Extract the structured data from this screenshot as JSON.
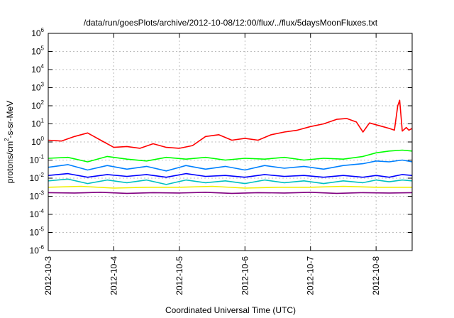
{
  "chart_data": {
    "type": "line",
    "title": "/data/run/goesPlots/archive/2012-10-08/12:00/flux/../flux/5daysMoonFluxes.txt",
    "xlabel": "Coordinated Universal Time (UTC)",
    "ylabel_parts": {
      "pre": "protons/cm",
      "sup": "2",
      "post": "-s-sr-MeV"
    },
    "yscale": "log",
    "ylim_exp": [
      -6,
      6
    ],
    "y_ticks": [
      {
        "base": "10",
        "exp": "6"
      },
      {
        "base": "10",
        "exp": "5"
      },
      {
        "base": "10",
        "exp": "4"
      },
      {
        "base": "10",
        "exp": "3"
      },
      {
        "base": "10",
        "exp": "2"
      },
      {
        "base": "10",
        "exp": "1"
      },
      {
        "base": "10",
        "exp": "0"
      },
      {
        "base": "10",
        "exp": "-1"
      },
      {
        "base": "10",
        "exp": "-2"
      },
      {
        "base": "10",
        "exp": "-3"
      },
      {
        "base": "10",
        "exp": "-4"
      },
      {
        "base": "10",
        "exp": "-5"
      },
      {
        "base": "10",
        "exp": "-6"
      }
    ],
    "x_ticks": [
      "2012-10-3",
      "2012-10-4",
      "2012-10-5",
      "2012-10-6",
      "2012-10-7",
      "2012-10-8"
    ],
    "xlim_days": [
      0,
      5.55
    ],
    "grid": true,
    "series": [
      {
        "color": "#ff0000",
        "points": [
          [
            0,
            0.1
          ],
          [
            0.2,
            0.05
          ],
          [
            0.4,
            0.3
          ],
          [
            0.6,
            0.5
          ],
          [
            0.8,
            0.1
          ],
          [
            1.0,
            -0.3
          ],
          [
            1.2,
            -0.25
          ],
          [
            1.4,
            -0.35
          ],
          [
            1.6,
            -0.1
          ],
          [
            1.8,
            -0.3
          ],
          [
            2.0,
            -0.35
          ],
          [
            2.2,
            -0.2
          ],
          [
            2.4,
            0.3
          ],
          [
            2.6,
            0.4
          ],
          [
            2.8,
            0.1
          ],
          [
            3.0,
            0.2
          ],
          [
            3.2,
            0.1
          ],
          [
            3.4,
            0.4
          ],
          [
            3.6,
            0.55
          ],
          [
            3.8,
            0.65
          ],
          [
            4.0,
            0.85
          ],
          [
            4.2,
            1.0
          ],
          [
            4.4,
            1.25
          ],
          [
            4.55,
            1.3
          ],
          [
            4.7,
            1.1
          ],
          [
            4.8,
            0.55
          ],
          [
            4.9,
            1.05
          ],
          [
            5.0,
            0.95
          ],
          [
            5.1,
            0.85
          ],
          [
            5.2,
            0.75
          ],
          [
            5.28,
            0.65
          ],
          [
            5.33,
            2.0
          ],
          [
            5.36,
            2.3
          ],
          [
            5.4,
            0.6
          ],
          [
            5.46,
            0.8
          ],
          [
            5.5,
            0.65
          ],
          [
            5.55,
            0.75
          ]
        ]
      },
      {
        "color": "#00ff00",
        "points": [
          [
            0,
            -0.9
          ],
          [
            0.3,
            -0.85
          ],
          [
            0.6,
            -1.1
          ],
          [
            0.9,
            -0.8
          ],
          [
            1.2,
            -0.95
          ],
          [
            1.5,
            -1.05
          ],
          [
            1.8,
            -0.85
          ],
          [
            2.1,
            -0.95
          ],
          [
            2.4,
            -0.85
          ],
          [
            2.7,
            -1.0
          ],
          [
            3.0,
            -0.9
          ],
          [
            3.3,
            -0.95
          ],
          [
            3.6,
            -0.85
          ],
          [
            3.9,
            -1.0
          ],
          [
            4.2,
            -0.9
          ],
          [
            4.5,
            -0.95
          ],
          [
            4.8,
            -0.8
          ],
          [
            5.0,
            -0.6
          ],
          [
            5.2,
            -0.5
          ],
          [
            5.4,
            -0.45
          ],
          [
            5.55,
            -0.5
          ]
        ]
      },
      {
        "color": "#0080ff",
        "points": [
          [
            0,
            -1.4
          ],
          [
            0.3,
            -1.25
          ],
          [
            0.6,
            -1.55
          ],
          [
            0.9,
            -1.3
          ],
          [
            1.2,
            -1.5
          ],
          [
            1.5,
            -1.35
          ],
          [
            1.8,
            -1.6
          ],
          [
            2.1,
            -1.3
          ],
          [
            2.4,
            -1.5
          ],
          [
            2.7,
            -1.35
          ],
          [
            3.0,
            -1.55
          ],
          [
            3.3,
            -1.3
          ],
          [
            3.6,
            -1.45
          ],
          [
            3.9,
            -1.35
          ],
          [
            4.2,
            -1.5
          ],
          [
            4.5,
            -1.3
          ],
          [
            4.8,
            -1.2
          ],
          [
            5.0,
            -1.05
          ],
          [
            5.2,
            -1.1
          ],
          [
            5.4,
            -1.0
          ],
          [
            5.55,
            -1.1
          ]
        ]
      },
      {
        "color": "#0000ff",
        "points": [
          [
            0,
            -1.85
          ],
          [
            0.3,
            -1.75
          ],
          [
            0.6,
            -1.95
          ],
          [
            0.9,
            -1.8
          ],
          [
            1.2,
            -1.9
          ],
          [
            1.5,
            -1.8
          ],
          [
            1.8,
            -1.95
          ],
          [
            2.1,
            -1.75
          ],
          [
            2.4,
            -1.9
          ],
          [
            2.7,
            -1.85
          ],
          [
            3.0,
            -1.95
          ],
          [
            3.3,
            -1.8
          ],
          [
            3.6,
            -1.9
          ],
          [
            3.9,
            -1.85
          ],
          [
            4.2,
            -1.95
          ],
          [
            4.5,
            -1.85
          ],
          [
            4.8,
            -1.95
          ],
          [
            5.0,
            -1.85
          ],
          [
            5.2,
            -1.95
          ],
          [
            5.4,
            -1.8
          ],
          [
            5.55,
            -1.85
          ]
        ]
      },
      {
        "color": "#00c0c0",
        "points": [
          [
            0,
            -2.15
          ],
          [
            0.3,
            -2.05
          ],
          [
            0.6,
            -2.3
          ],
          [
            0.9,
            -2.1
          ],
          [
            1.2,
            -2.25
          ],
          [
            1.5,
            -2.1
          ],
          [
            1.8,
            -2.35
          ],
          [
            2.1,
            -2.1
          ],
          [
            2.4,
            -2.25
          ],
          [
            2.7,
            -2.15
          ],
          [
            3.0,
            -2.3
          ],
          [
            3.3,
            -2.1
          ],
          [
            3.6,
            -2.25
          ],
          [
            3.9,
            -2.15
          ],
          [
            4.2,
            -2.3
          ],
          [
            4.5,
            -2.15
          ],
          [
            4.8,
            -2.25
          ],
          [
            5.0,
            -2.1
          ],
          [
            5.2,
            -2.2
          ],
          [
            5.4,
            -2.1
          ],
          [
            5.55,
            -2.15
          ]
        ]
      },
      {
        "color": "#f0f000",
        "points": [
          [
            0,
            -2.5
          ],
          [
            0.5,
            -2.45
          ],
          [
            1.0,
            -2.55
          ],
          [
            1.5,
            -2.5
          ],
          [
            2.0,
            -2.5
          ],
          [
            2.5,
            -2.45
          ],
          [
            3.0,
            -2.55
          ],
          [
            3.5,
            -2.5
          ],
          [
            4.0,
            -2.5
          ],
          [
            4.5,
            -2.45
          ],
          [
            5.0,
            -2.5
          ],
          [
            5.55,
            -2.5
          ]
        ]
      },
      {
        "color": "#800080",
        "points": [
          [
            0,
            -2.8
          ],
          [
            0.4,
            -2.82
          ],
          [
            0.8,
            -2.78
          ],
          [
            1.2,
            -2.84
          ],
          [
            1.6,
            -2.8
          ],
          [
            2.0,
            -2.82
          ],
          [
            2.4,
            -2.78
          ],
          [
            2.8,
            -2.84
          ],
          [
            3.2,
            -2.8
          ],
          [
            3.6,
            -2.82
          ],
          [
            4.0,
            -2.78
          ],
          [
            4.4,
            -2.84
          ],
          [
            4.8,
            -2.8
          ],
          [
            5.2,
            -2.82
          ],
          [
            5.55,
            -2.8
          ]
        ]
      }
    ]
  }
}
